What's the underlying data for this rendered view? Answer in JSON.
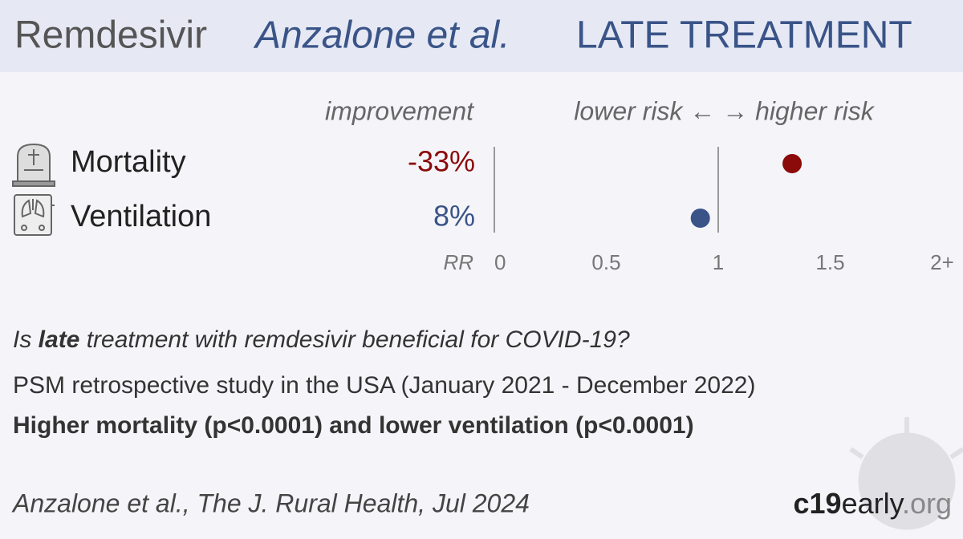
{
  "header": {
    "drug": "Remdesivir",
    "study": "Anzalone et al.",
    "stage": "LATE TREATMENT"
  },
  "chart_data": {
    "type": "dot",
    "column_header": "improvement",
    "direction_label": "lower risk ← → higher risk",
    "x_label": "RR",
    "categories": [
      "Mortality",
      "Ventilation"
    ],
    "improvement_labels": [
      "-33%",
      "8%"
    ],
    "values": [
      1.33,
      0.92
    ],
    "colors": [
      "#8b0a0a",
      "#3a5488"
    ],
    "xlim": [
      0,
      2
    ],
    "xticks": [
      0,
      0.5,
      1,
      1.5,
      {
        "value": 2,
        "label": "2+"
      }
    ],
    "ref_lines": [
      0,
      1
    ]
  },
  "summary": {
    "question": [
      "Is ",
      "late",
      " treatment with remdesivir beneficial for COVID-19?"
    ],
    "design": "PSM retrospective study in the USA (January 2021 - December 2022)",
    "conclusion": "Higher mortality (p<0.0001) and lower ventilation (p<0.0001)"
  },
  "footer": {
    "citation": "Anzalone et al., The J. Rural Health, Jul 2024",
    "logo": [
      "c19",
      "early",
      ".org"
    ]
  }
}
